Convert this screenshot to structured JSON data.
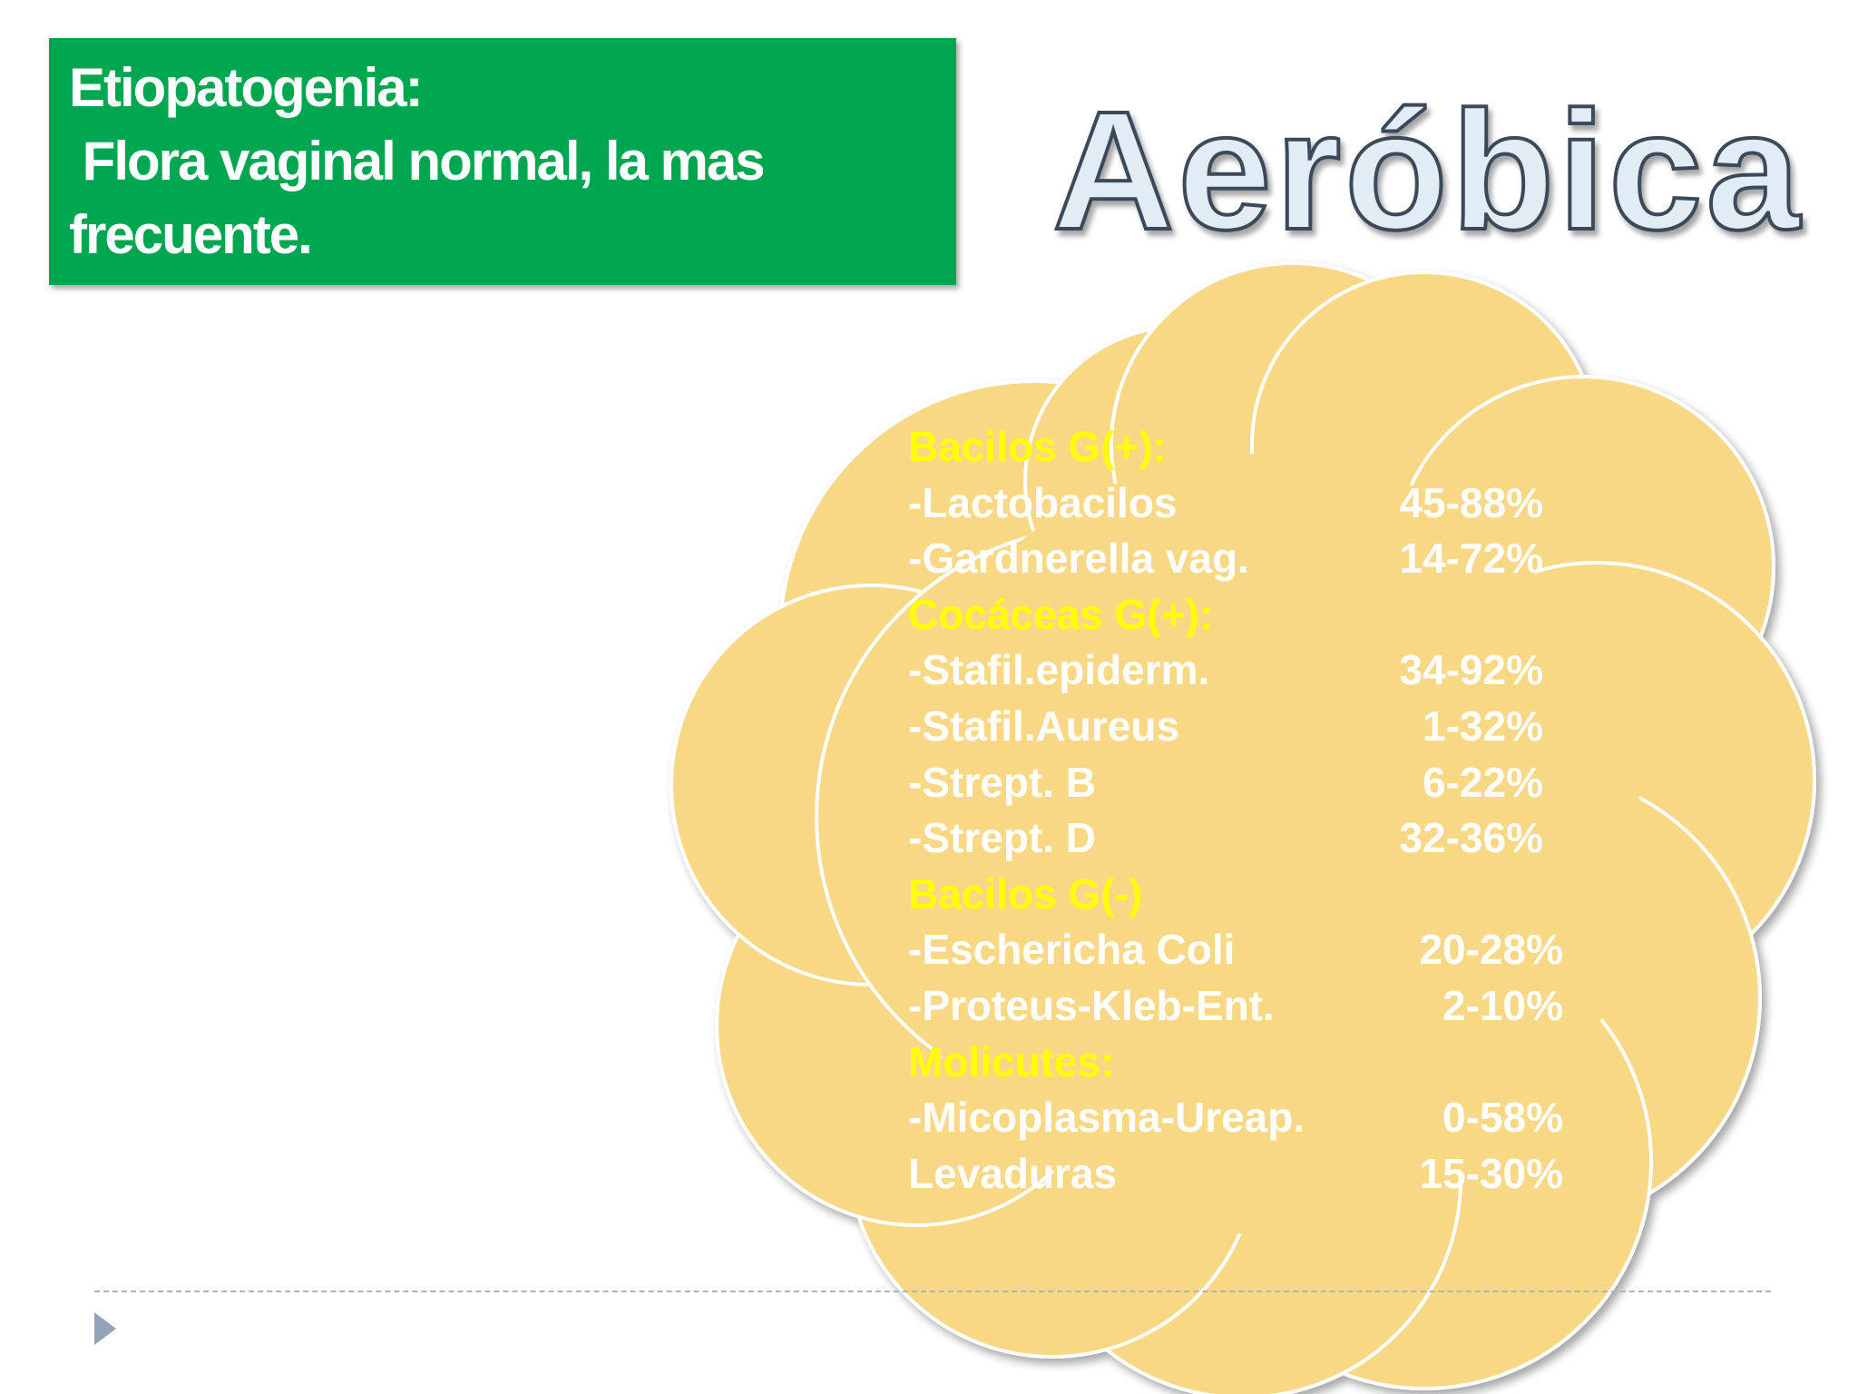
{
  "colors": {
    "title_box_bg": "#00a650",
    "title_text": "#ffffff",
    "heading_fill": "#e1ecf4",
    "heading_stroke": "#3b4a5a",
    "cloud_fill": "#f8d885",
    "cloud_stroke": "#ffffff",
    "category_text": "#ffff00",
    "item_text": "#ffffff",
    "divider": "#a9b4c3",
    "bullet": "#93a3b8"
  },
  "title_box": {
    "lines": [
      "Etiopatogenia:",
      " Flora vaginal normal, la mas",
      "frecuente."
    ]
  },
  "heading": "Aeróbica",
  "cloud_list": [
    {
      "kind": "category",
      "label": "Bacilos G(+):"
    },
    {
      "kind": "item",
      "label": "-Lactobacilos",
      "percent": "45-88%"
    },
    {
      "kind": "item",
      "label": "-Gardnerella vag.",
      "percent": "14-72%"
    },
    {
      "kind": "category",
      "label": "Cocáceas G(+):"
    },
    {
      "kind": "item",
      "label": "-Stafil.epiderm.",
      "percent": "34-92%"
    },
    {
      "kind": "item",
      "label": "-Stafil.Aureus",
      "percent": "1-32%"
    },
    {
      "kind": "item",
      "label": "-Strept. B",
      "percent": "6-22%"
    },
    {
      "kind": "item",
      "label": "-Strept. D",
      "percent": "32-36%"
    },
    {
      "kind": "category",
      "label": "Bacilos G(-)"
    },
    {
      "kind": "item",
      "label": "-Eschericha Coli",
      "percent": "20-28%"
    },
    {
      "kind": "item",
      "label": "-Proteus-Kleb-Ent.",
      "percent": "2-10%"
    },
    {
      "kind": "category",
      "label": "Molicutes:"
    },
    {
      "kind": "item",
      "label": "-Micoplasma-Ureap.",
      "percent": "0-58%"
    },
    {
      "kind": "item",
      "label": "Levaduras",
      "percent": "15-30%"
    }
  ],
  "icons": {
    "bullet": "triangle-bullet-icon"
  }
}
